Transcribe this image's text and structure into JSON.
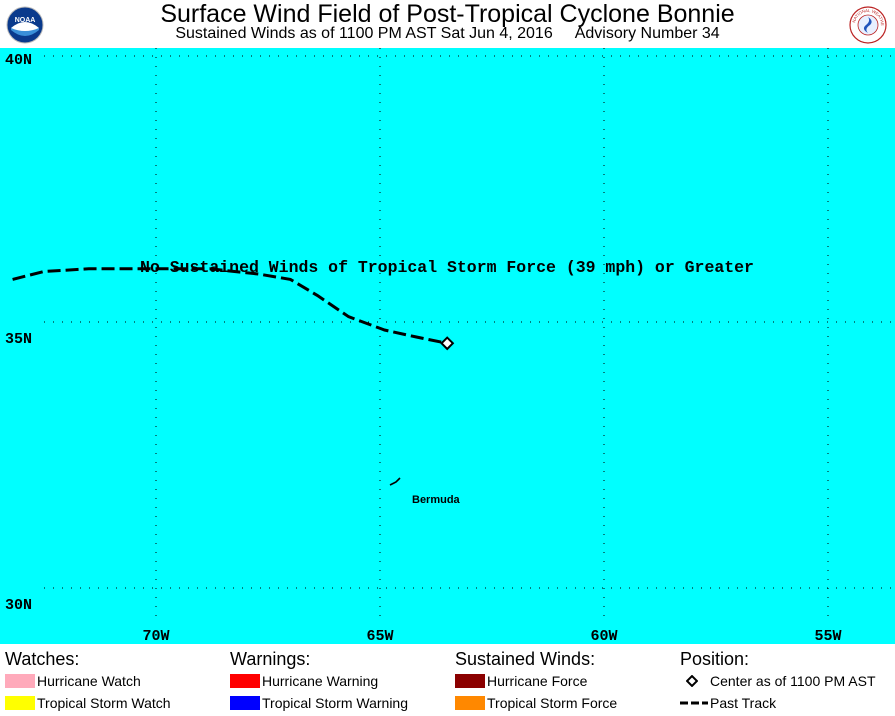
{
  "header": {
    "title": "Surface Wind Field of Post-Tropical Cyclone Bonnie",
    "subtitle_time": "Sustained Winds as of 1100 PM AST Sat Jun 4, 2016",
    "subtitle_advisory": "Advisory Number 34",
    "left_logo_text": "NOAA",
    "right_logo_text": "NATIONAL WEATHER SERVICE"
  },
  "map": {
    "ocean_color": "#00ffff",
    "lat_labels": [
      "40N",
      "35N",
      "30N"
    ],
    "lon_labels": [
      "70W",
      "65W",
      "60W",
      "55W"
    ],
    "message": "No Sustained Winds of Tropical Storm Force (39 mph) or Greater",
    "place_label": "Bermuda",
    "current_center": {
      "lat": 34.6,
      "lon": -63.5
    },
    "past_track": [
      {
        "lat": 35.8,
        "lon": -73.2
      },
      {
        "lat": 35.95,
        "lon": -72.5
      },
      {
        "lat": 36.0,
        "lon": -71.5
      },
      {
        "lat": 36.0,
        "lon": -70.0
      },
      {
        "lat": 36.0,
        "lon": -68.8
      },
      {
        "lat": 35.9,
        "lon": -67.7
      },
      {
        "lat": 35.8,
        "lon": -67.0
      },
      {
        "lat": 35.5,
        "lon": -66.4
      },
      {
        "lat": 35.1,
        "lon": -65.7
      },
      {
        "lat": 34.85,
        "lon": -64.9
      },
      {
        "lat": 34.72,
        "lon": -64.2
      },
      {
        "lat": 34.6,
        "lon": -63.5
      }
    ]
  },
  "legend": {
    "watches": {
      "heading": "Watches:",
      "items": [
        {
          "label": "Hurricane Watch",
          "color": "#ffaabb"
        },
        {
          "label": "Tropical Storm Watch",
          "color": "#ffff00"
        }
      ]
    },
    "warnings": {
      "heading": "Warnings:",
      "items": [
        {
          "label": "Hurricane Warning",
          "color": "#ff0000"
        },
        {
          "label": "Tropical Storm Warning",
          "color": "#0000ff"
        }
      ]
    },
    "winds": {
      "heading": "Sustained Winds:",
      "items": [
        {
          "label": "Hurricane Force",
          "color": "#8b0000"
        },
        {
          "label": "Tropical Storm Force",
          "color": "#ff8800"
        }
      ]
    },
    "position": {
      "heading": "Position:",
      "center_label": "Center as of 1100 PM AST",
      "track_label": "Past Track"
    }
  }
}
